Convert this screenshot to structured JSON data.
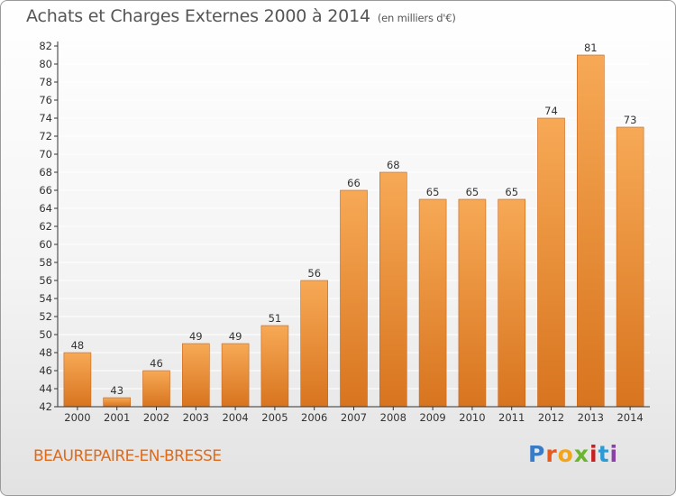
{
  "title": "Achats et Charges Externes 2000 à 2014",
  "subtitle": "(en milliers d'€)",
  "commune": "BEAUREPAIRE-EN-BRESSE",
  "logo": {
    "text": "Proxiti",
    "colors": [
      "#3a7bc8",
      "#e85a1c",
      "#f2a51b",
      "#6bb52f",
      "#c8201e",
      "#2b9bd6",
      "#8b3fa8"
    ]
  },
  "colors": {
    "bar_light": "#f7a955",
    "bar_dark": "#d8741f",
    "bar_edge": "#c9651a",
    "grid": "#ffffff",
    "axis": "#333333",
    "commune_text": "#e06a1a"
  },
  "chart_data": {
    "type": "bar",
    "title": "Achats et Charges Externes 2000 à 2014",
    "subtitle": "(en milliers d'€)",
    "categories": [
      "2000",
      "2001",
      "2002",
      "2003",
      "2004",
      "2005",
      "2006",
      "2007",
      "2008",
      "2009",
      "2010",
      "2011",
      "2012",
      "2013",
      "2014"
    ],
    "values": [
      48,
      43,
      46,
      49,
      49,
      51,
      56,
      66,
      68,
      65,
      65,
      65,
      74,
      81,
      73
    ],
    "ylim": [
      42,
      82
    ],
    "yticks": [
      42,
      44,
      46,
      48,
      50,
      52,
      54,
      56,
      58,
      60,
      62,
      64,
      66,
      68,
      70,
      72,
      74,
      76,
      78,
      80,
      82
    ],
    "grid": true,
    "data_labels": true
  }
}
